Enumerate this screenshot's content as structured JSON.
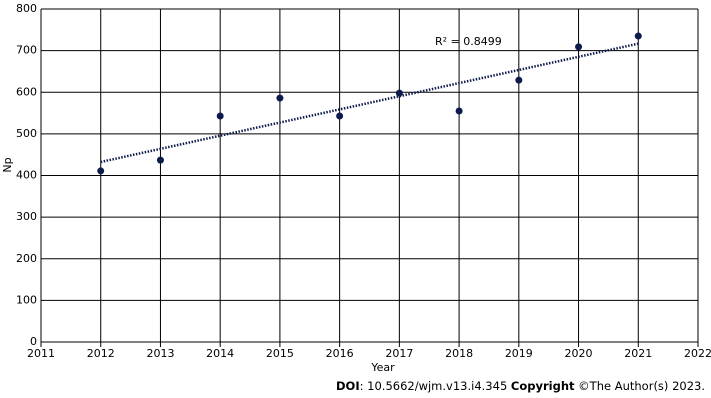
{
  "chart_data": {
    "type": "scatter",
    "x": [
      2012,
      2013,
      2014,
      2015,
      2016,
      2017,
      2018,
      2019,
      2020,
      2021
    ],
    "values": [
      411,
      437,
      543,
      586,
      543,
      598,
      555,
      629,
      709,
      735
    ],
    "color": "#0d1b4c",
    "xlim": [
      2011,
      2022
    ],
    "ylim": [
      0,
      800
    ],
    "xticks": [
      2011,
      2012,
      2013,
      2014,
      2015,
      2016,
      2017,
      2018,
      2019,
      2020,
      2021,
      2022
    ],
    "yticks": [
      0,
      100,
      200,
      300,
      400,
      500,
      600,
      700,
      800
    ],
    "grid": true,
    "trendline": "linear",
    "xlabel": "Year",
    "ylabel": "Np",
    "annotation": "R² = 0.8499"
  },
  "caption": {
    "doi_label": "DOI",
    "doi": ": 10.5662/wjm.v13.i4.345 ",
    "copyright_label": "Copyright",
    "copyright": " ©The Author(s) 2023."
  }
}
